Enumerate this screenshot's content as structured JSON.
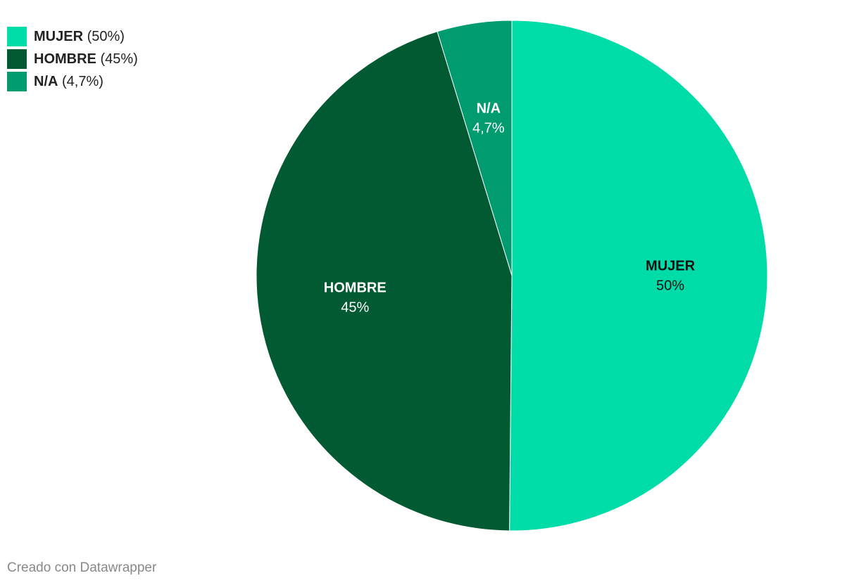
{
  "chart_data": {
    "type": "pie",
    "categories": [
      "MUJER",
      "HOMBRE",
      "N/A"
    ],
    "values": [
      50,
      45,
      4.7
    ],
    "value_labels": [
      "50%",
      "45%",
      "4,7%"
    ],
    "legend_value_labels": [
      "(50%)",
      "(45%)",
      "(4,7%)"
    ],
    "colors": [
      "#00dca8",
      "#025a32",
      "#009b6e"
    ],
    "label_colors": [
      "#111111",
      "#ffffff",
      "#ffffff"
    ],
    "legend": "top-left",
    "footer": "Creado con Datawrapper"
  }
}
